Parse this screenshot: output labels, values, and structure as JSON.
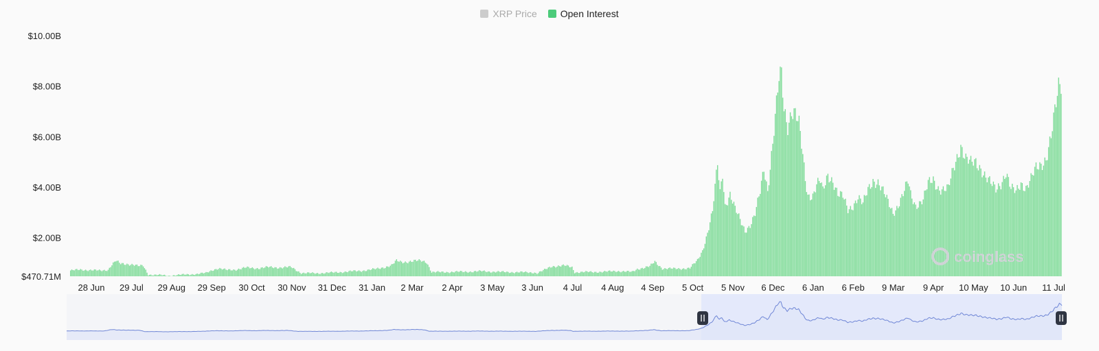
{
  "legend": [
    {
      "label": "XRP Price",
      "color": "#cccccc",
      "active": false
    },
    {
      "label": "Open Interest",
      "color": "#4ccb7a",
      "active": true
    }
  ],
  "watermark": "coinglass",
  "colors": {
    "bar": "#7fdb98",
    "bar_stroke": "#4ccb7a",
    "navigator_fill": "#e4e9fb",
    "navigator_line": "#6f86d6",
    "handle": "#2f3542"
  },
  "chart_data": {
    "type": "bar",
    "y_ticks": [
      "$470.71M",
      "$2.00B",
      "$4.00B",
      "$6.00B",
      "$8.00B",
      "$10.00B"
    ],
    "y_tick_values": [
      470.71,
      2000,
      4000,
      6000,
      8000,
      10000
    ],
    "ylim": [
      470.71,
      10000
    ],
    "y_unit": "millions USD",
    "x_ticks": [
      "28 Jun",
      "29 Jul",
      "29 Aug",
      "29 Sep",
      "30 Oct",
      "30 Nov",
      "31 Dec",
      "31 Jan",
      "2 Mar",
      "2 Apr",
      "3 May",
      "3 Jun",
      "4 Jul",
      "4 Aug",
      "4 Sep",
      "5 Oct",
      "5 Nov",
      "6 Dec",
      "6 Jan",
      "6 Feb",
      "9 Mar",
      "9 Apr",
      "10 May",
      "10 Jun",
      "11 Jul"
    ],
    "series_anchors": [
      [
        0,
        700
      ],
      [
        8,
        730
      ],
      [
        16,
        720
      ],
      [
        24,
        690
      ],
      [
        30,
        730
      ],
      [
        32,
        880
      ],
      [
        36,
        1080
      ],
      [
        40,
        960
      ],
      [
        46,
        960
      ],
      [
        50,
        940
      ],
      [
        54,
        870
      ],
      [
        58,
        880
      ],
      [
        62,
        540
      ],
      [
        66,
        530
      ],
      [
        72,
        520
      ],
      [
        78,
        490
      ],
      [
        84,
        520
      ],
      [
        92,
        540
      ],
      [
        100,
        560
      ],
      [
        108,
        600
      ],
      [
        114,
        740
      ],
      [
        118,
        780
      ],
      [
        124,
        720
      ],
      [
        132,
        740
      ],
      [
        140,
        810
      ],
      [
        150,
        790
      ],
      [
        158,
        830
      ],
      [
        168,
        820
      ],
      [
        176,
        830
      ],
      [
        184,
        600
      ],
      [
        196,
        590
      ],
      [
        210,
        620
      ],
      [
        222,
        660
      ],
      [
        232,
        690
      ],
      [
        244,
        760
      ],
      [
        250,
        830
      ],
      [
        256,
        900
      ],
      [
        260,
        1080
      ],
      [
        264,
        1040
      ],
      [
        272,
        1060
      ],
      [
        280,
        1090
      ],
      [
        284,
        1040
      ],
      [
        288,
        630
      ],
      [
        300,
        640
      ],
      [
        314,
        650
      ],
      [
        328,
        670
      ],
      [
        344,
        640
      ],
      [
        360,
        630
      ],
      [
        370,
        620
      ],
      [
        372,
        590
      ],
      [
        378,
        720
      ],
      [
        384,
        870
      ],
      [
        394,
        890
      ],
      [
        400,
        830
      ],
      [
        402,
        630
      ],
      [
        412,
        640
      ],
      [
        426,
        650
      ],
      [
        436,
        680
      ],
      [
        448,
        640
      ],
      [
        452,
        760
      ],
      [
        462,
        860
      ],
      [
        466,
        1050
      ],
      [
        472,
        780
      ],
      [
        482,
        770
      ],
      [
        494,
        790
      ],
      [
        500,
        1100
      ],
      [
        504,
        1500
      ],
      [
        508,
        2200
      ],
      [
        512,
        3000
      ],
      [
        516,
        4900
      ],
      [
        518,
        3800
      ],
      [
        520,
        4600
      ],
      [
        522,
        3300
      ],
      [
        526,
        3700
      ],
      [
        530,
        3100
      ],
      [
        534,
        2700
      ],
      [
        538,
        2300
      ],
      [
        542,
        2500
      ],
      [
        546,
        2900
      ],
      [
        550,
        3800
      ],
      [
        553,
        4800
      ],
      [
        556,
        3900
      ],
      [
        559,
        5300
      ],
      [
        562,
        6700
      ],
      [
        565,
        8200
      ],
      [
        567,
        8400
      ],
      [
        569,
        7100
      ],
      [
        572,
        6500
      ],
      [
        575,
        7100
      ],
      [
        578,
        6900
      ],
      [
        581,
        6400
      ],
      [
        584,
        5200
      ],
      [
        586,
        4300
      ],
      [
        588,
        3700
      ],
      [
        592,
        3700
      ],
      [
        595,
        4100
      ],
      [
        598,
        4200
      ],
      [
        600,
        3800
      ],
      [
        604,
        4500
      ],
      [
        608,
        4300
      ],
      [
        612,
        3700
      ],
      [
        616,
        3600
      ],
      [
        620,
        3100
      ],
      [
        624,
        3300
      ],
      [
        628,
        3600
      ],
      [
        632,
        3300
      ],
      [
        636,
        3900
      ],
      [
        640,
        4300
      ],
      [
        644,
        4200
      ],
      [
        648,
        3800
      ],
      [
        652,
        3400
      ],
      [
        656,
        3000
      ],
      [
        660,
        3300
      ],
      [
        664,
        3700
      ],
      [
        668,
        4200
      ],
      [
        670,
        3700
      ],
      [
        674,
        3300
      ],
      [
        680,
        3500
      ],
      [
        684,
        4100
      ],
      [
        688,
        4300
      ],
      [
        692,
        4000
      ],
      [
        696,
        3900
      ],
      [
        700,
        3900
      ],
      [
        704,
        4700
      ],
      [
        708,
        5400
      ],
      [
        710,
        5700
      ],
      [
        714,
        5100
      ],
      [
        718,
        4900
      ],
      [
        722,
        5000
      ],
      [
        726,
        4800
      ],
      [
        730,
        4400
      ],
      [
        734,
        4100
      ],
      [
        738,
        3900
      ],
      [
        742,
        4200
      ],
      [
        746,
        4600
      ],
      [
        750,
        3900
      ],
      [
        754,
        3800
      ],
      [
        758,
        4200
      ],
      [
        762,
        4000
      ],
      [
        766,
        4300
      ],
      [
        770,
        4700
      ],
      [
        774,
        4900
      ],
      [
        778,
        5200
      ],
      [
        782,
        6000
      ],
      [
        786,
        7200
      ],
      [
        788,
        7900
      ],
      [
        790,
        8050
      ]
    ],
    "n_bars": 791
  },
  "navigator": {
    "selection_start_fraction": 0.6377,
    "selection_end_fraction": 1.0
  }
}
